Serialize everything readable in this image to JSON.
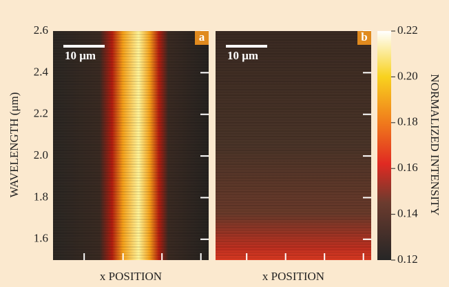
{
  "chart_data": {
    "type": "heatmap",
    "ylabel": "WAVELENGTH (μm)",
    "ylim": [
      1.5,
      2.6
    ],
    "yticks": [
      1.6,
      1.8,
      {
        "value": 2,
        "label": "2.0"
      },
      2.2,
      2.4,
      2.6
    ],
    "panels": [
      {
        "label": "a",
        "xlabel": "x POSITION",
        "scale_bar": "10 μm"
      },
      {
        "label": "b",
        "xlabel": "x POSITION",
        "scale_bar": "10 μm"
      }
    ],
    "colorbar_label": "NORMALIZED INTENSITY",
    "clim": [
      0.12,
      0.22
    ],
    "cticks": [
      0.12,
      0.14,
      0.16,
      0.18,
      {
        "value": 0.2,
        "label": "0.20"
      },
      0.22
    ]
  }
}
